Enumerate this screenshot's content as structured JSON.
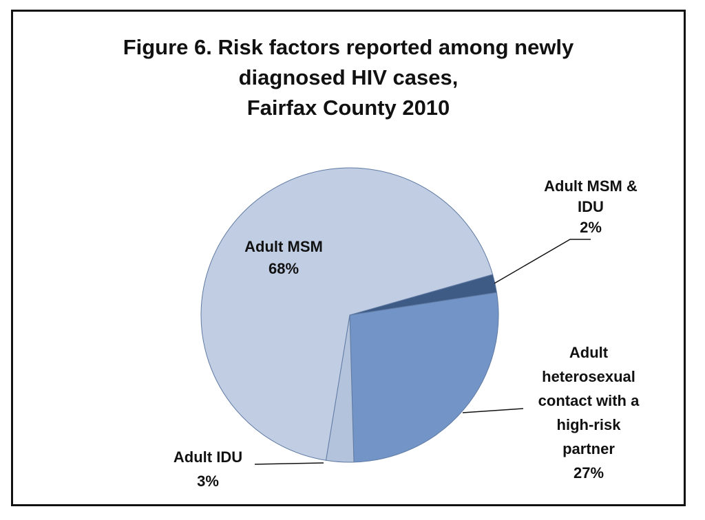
{
  "chart_data": {
    "type": "pie",
    "title": [
      "Figure 6. Risk factors reported among newly",
      "diagnosed HIV cases,",
      "Fairfax County 2010"
    ],
    "slices": [
      {
        "label": [
          "Adult MSM & IDU"
        ],
        "display_label": [
          "Adult MSM &",
          "IDU"
        ],
        "value": 2,
        "pct_text": "2%",
        "color": "#3e5b86"
      },
      {
        "label": [
          "Adult heterosexual contact with a high-risk partner"
        ],
        "display_label": [
          "Adult",
          "heterosexual",
          "contact with a",
          "high-risk",
          "partner"
        ],
        "value": 27,
        "pct_text": "27%",
        "color": "#7394c6"
      },
      {
        "label": [
          "Adult IDU"
        ],
        "display_label": [
          "Adult IDU"
        ],
        "value": 3,
        "pct_text": "3%",
        "color": "#b4c3dc"
      },
      {
        "label": [
          "Adult MSM"
        ],
        "display_label": [
          "Adult MSM"
        ],
        "value": 68,
        "pct_text": "68%",
        "color": "#c1cde3"
      }
    ]
  }
}
